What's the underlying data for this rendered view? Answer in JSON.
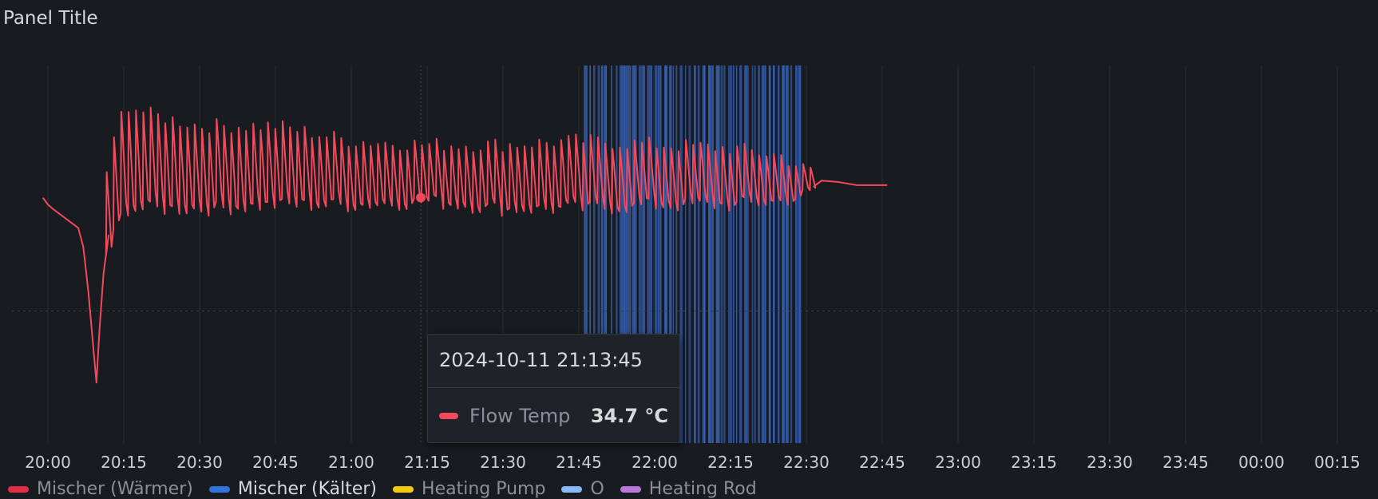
{
  "panel": {
    "title": "Panel Title"
  },
  "colors": {
    "flow_temp": "#f2495c",
    "mischer_kaelter_band": "#3d6fd1",
    "grid": "#2a2d33"
  },
  "tooltip": {
    "time": "2024-10-11 21:13:45",
    "series": "Flow Temp",
    "value": "34.7 °C",
    "color": "#f2495c"
  },
  "legend": [
    {
      "label": "Mischer (Wärmer)",
      "color": "#e02f44",
      "active": false
    },
    {
      "label": "Mischer (Kälter)",
      "color": "#3274d9",
      "active": true
    },
    {
      "label": "Heating Pump",
      "color": "#f2cc0c",
      "active": false
    },
    {
      "label": "O",
      "color": "#8ab8ff",
      "active": false
    },
    {
      "label": "Heating Rod",
      "color": "#b877d9",
      "active": false
    }
  ],
  "chart_data": {
    "type": "line",
    "x_ticks": [
      "20:00",
      "20:15",
      "20:30",
      "20:45",
      "21:00",
      "21:15",
      "21:30",
      "21:45",
      "22:00",
      "22:15",
      "22:30",
      "22:45",
      "23:00",
      "23:15",
      "23:30",
      "23:45",
      "00:00",
      "00:15"
    ],
    "x_range_minutes": [
      -2,
      22
    ],
    "y_range": [
      0,
      100
    ],
    "grid": true,
    "threshold_y": 35,
    "hover": {
      "x_minutes": 73.75,
      "y": 34.7
    },
    "series": [
      {
        "name": "Flow Temp",
        "color": "#f2495c",
        "description_points": [
          [
            -1.0,
            65
          ],
          [
            0.0,
            63.2
          ],
          [
            1.0,
            62.0
          ],
          [
            2.0,
            61.0
          ],
          [
            3.0,
            60.0
          ],
          [
            4.0,
            59.0
          ],
          [
            5.0,
            58.0
          ],
          [
            6.0,
            57.0
          ],
          [
            7.0,
            52
          ],
          [
            8.0,
            40
          ],
          [
            9.0,
            25
          ],
          [
            9.6,
            16
          ],
          [
            10.2,
            30
          ],
          [
            11.0,
            45
          ],
          [
            12.0,
            55
          ]
        ],
        "oscillation": {
          "start_minutes": 11.5,
          "end_minutes": 151.5,
          "period_minutes": 1.45,
          "envelope": [
            [
              11.5,
              50,
              72
            ],
            [
              15.0,
              62,
              90
            ],
            [
              20.0,
              62,
              87
            ],
            [
              30.0,
              62,
              84
            ],
            [
              45.0,
              63,
              84
            ],
            [
              60.0,
              63,
              80
            ],
            [
              75.0,
              64,
              79
            ],
            [
              90.0,
              62,
              79
            ],
            [
              105.0,
              62,
              80
            ],
            [
              120.0,
              63,
              79
            ],
            [
              135.0,
              63,
              78
            ],
            [
              145.0,
              64,
              76
            ],
            [
              150.0,
              66,
              72
            ]
          ]
        },
        "tail_points": [
          [
            151.5,
            68
          ],
          [
            153.0,
            69.5
          ],
          [
            156.0,
            69.2
          ],
          [
            160.0,
            68.3
          ],
          [
            166.0,
            68.3
          ]
        ]
      }
    ],
    "bands": {
      "name": "Mischer (Kälter)",
      "color": "#3d6fd1",
      "start_minutes": 106.0,
      "end_minutes": 149.0,
      "typical_interval_minutes": 0.65
    }
  }
}
